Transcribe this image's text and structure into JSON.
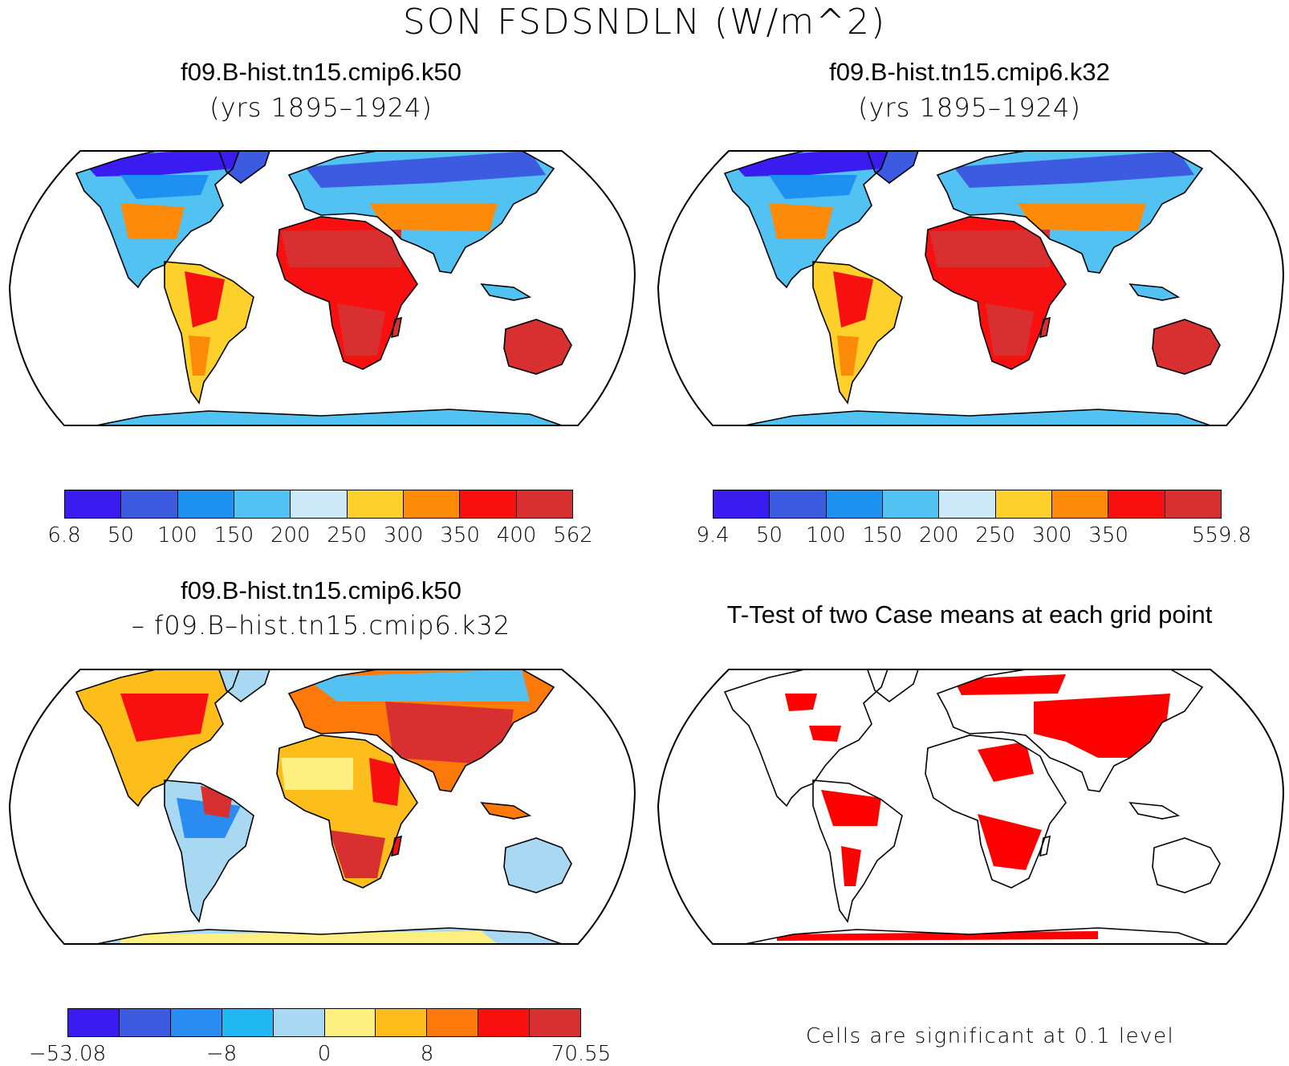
{
  "title": "SON FSDSNDLN (W/m^2)",
  "panels": {
    "top_left": {
      "title": "f09.B-hist.tn15.cmip6.k50",
      "subtitle": "(yrs 1895–1924)"
    },
    "top_right": {
      "title": "f09.B-hist.tn15.cmip6.k32",
      "subtitle": "(yrs 1895–1924)"
    },
    "bottom_left": {
      "title": "f09.B-hist.tn15.cmip6.k50",
      "subtitle": "– f09.B–hist.tn15.cmip6.k32"
    },
    "bottom_right": {
      "title": "T-Test of two Case means at each grid point",
      "note": "Cells are significant at 0.1 level"
    }
  },
  "colorbars": {
    "top_left": {
      "colors": [
        "#3b1cf0",
        "#3d5be0",
        "#1e90f0",
        "#52c2f2",
        "#cde9f7",
        "#fdd02c",
        "#fd8a08",
        "#f81010",
        "#d83030"
      ],
      "labels": [
        "6.8",
        "50",
        "100",
        "150",
        "200",
        "250",
        "300",
        "350",
        "400",
        "562"
      ]
    },
    "top_right": {
      "colors": [
        "#3b1cf0",
        "#3d5be0",
        "#1e90f0",
        "#52c2f2",
        "#cde9f7",
        "#fdd02c",
        "#fd8a08",
        "#f81010",
        "#d83030"
      ],
      "labels": [
        "9.4",
        "50",
        "100",
        "150",
        "200",
        "250",
        "300",
        "350",
        "",
        "559.8"
      ]
    },
    "bottom_left": {
      "colors": [
        "#3b1cf0",
        "#3d5be0",
        "#2a8cf0",
        "#20b8f0",
        "#a8d8f2",
        "#fdf080",
        "#fdbe1c",
        "#fd7a0a",
        "#f81010",
        "#d83030"
      ],
      "labels": [
        "−53.08",
        "",
        "",
        "−8",
        "",
        "0",
        "",
        "8",
        "",
        "",
        "70.55"
      ]
    }
  },
  "legend_colors": {
    "significant": "#ff0000",
    "land_outline": "#000000"
  }
}
